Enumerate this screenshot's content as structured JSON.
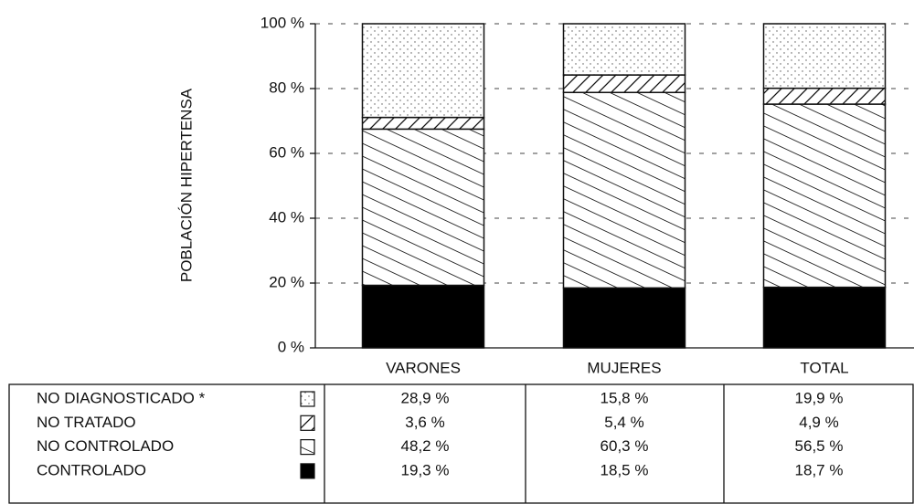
{
  "chart_data": {
    "type": "stacked-bar",
    "y_label": "POBLACIÓN HIPERTENSA",
    "categories": [
      "VARONES",
      "MUJERES",
      "TOTAL"
    ],
    "series": [
      {
        "name": "CONTROLADO",
        "pattern": "solid",
        "color": "#000000",
        "values": [
          19.3,
          18.5,
          18.7
        ],
        "value_labels": [
          "19,3 %",
          "18,5 %",
          "18,7 %"
        ]
      },
      {
        "name": "NO CONTROLADO",
        "pattern": "hatch-back",
        "color": "#000000",
        "values": [
          48.2,
          60.3,
          56.5
        ],
        "value_labels": [
          "48,2 %",
          "60,3 %",
          "56,5 %"
        ]
      },
      {
        "name": "NO TRATADO",
        "pattern": "hatch-forward",
        "color": "#000000",
        "values": [
          3.6,
          5.4,
          4.9
        ],
        "value_labels": [
          "3,6 %",
          "5,4 %",
          "4,9 %"
        ]
      },
      {
        "name": "NO DIAGNOSTICADO *",
        "pattern": "dots",
        "color": "#000000",
        "values": [
          28.9,
          15.8,
          19.9
        ],
        "value_labels": [
          "28,9 %",
          "15,8 %",
          "19,9 %"
        ]
      }
    ],
    "ylim": [
      0,
      100
    ],
    "yticks": [
      {
        "value": 0,
        "label": "0 %"
      },
      {
        "value": 20,
        "label": "20 %"
      },
      {
        "value": 40,
        "label": "40 %"
      },
      {
        "value": 60,
        "label": "60 %"
      },
      {
        "value": 80,
        "label": "80 %"
      },
      {
        "value": 100,
        "label": "100 %"
      }
    ],
    "grid": true
  }
}
